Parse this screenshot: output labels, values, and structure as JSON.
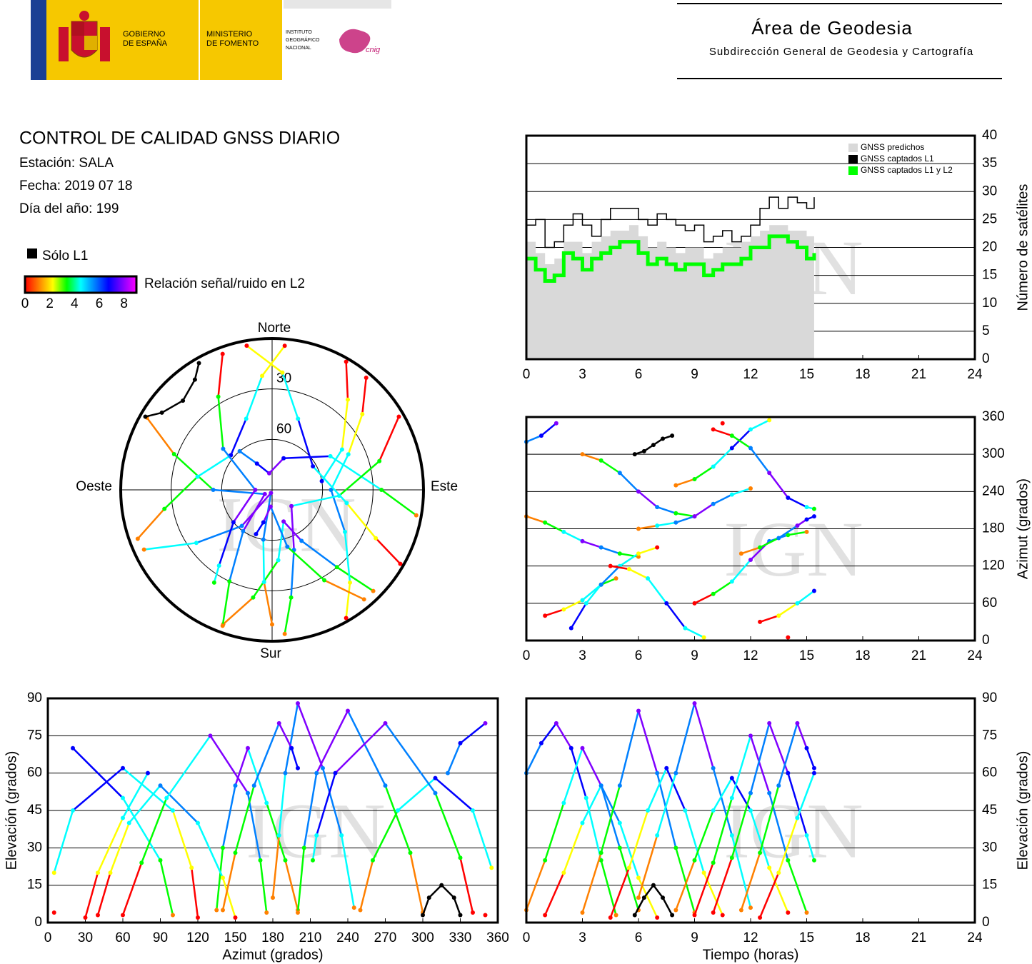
{
  "header": {
    "government": [
      "GOBIERNO",
      "DE ESPAÑA"
    ],
    "ministry": [
      "MINISTERIO",
      "DE FOMENTO"
    ],
    "institute": [
      "INSTITUTO",
      "GEOGRÁFICO",
      "NACIONAL"
    ],
    "cnig": "cnig",
    "area": "Área de Geodesia",
    "subdirectorate": "Subdirección General de Geodesia y Cartografía"
  },
  "report": {
    "title": "CONTROL DE CALIDAD GNSS DIARIO",
    "station": "Estación: SALA",
    "date": "Fecha: 2019 07 18",
    "day_of_year": "Día del año: 199"
  },
  "legend": {
    "l1_only": "Sólo L1",
    "l1_only_color": "#000000",
    "snr_label": "Relación señal/ruido en L2",
    "colormap": [
      "#ff0000",
      "#ff8000",
      "#ffff00",
      "#00ff00",
      "#00ffff",
      "#0080ff",
      "#0000ff",
      "#8000ff",
      "#ff00ff"
    ],
    "snr_lim": [
      0,
      9
    ],
    "snr_ticks": [
      0,
      2,
      4,
      6,
      8
    ]
  },
  "watermark": "IGN",
  "observations": {
    "passes": [
      {
        "time": [
          0,
          0.8,
          1.6,
          2.4,
          3.2,
          4.0,
          4.8
        ],
        "azimuth": [
          320,
          330,
          350,
          20,
          60,
          90,
          100
        ],
        "elevation": [
          60,
          72,
          80,
          70,
          50,
          25,
          3
        ],
        "snr": [
          6,
          7,
          8,
          7,
          5,
          3,
          1
        ]
      },
      {
        "time": [
          0,
          1,
          2,
          3,
          4,
          5,
          6
        ],
        "azimuth": [
          200,
          190,
          175,
          160,
          150,
          140,
          135
        ],
        "elevation": [
          5,
          25,
          48,
          70,
          55,
          30,
          5
        ],
        "snr": [
          1,
          3,
          5,
          8,
          6,
          3,
          1
        ]
      },
      {
        "time": [
          1,
          2,
          3,
          4,
          5,
          6,
          7
        ],
        "azimuth": [
          40,
          50,
          65,
          90,
          120,
          140,
          150
        ],
        "elevation": [
          3,
          20,
          40,
          55,
          40,
          18,
          2
        ],
        "snr": [
          0,
          2,
          4,
          6,
          4,
          2,
          0
        ]
      },
      {
        "time": [
          3,
          4,
          5,
          6,
          7,
          8,
          9
        ],
        "azimuth": [
          300,
          290,
          270,
          240,
          215,
          205,
          200
        ],
        "elevation": [
          4,
          28,
          55,
          85,
          60,
          30,
          4
        ],
        "snr": [
          1,
          3,
          6,
          8,
          6,
          3,
          1
        ]
      },
      {
        "time": [
          4.5,
          5.5,
          6.5,
          7.5,
          8.5,
          9.5,
          10.5
        ],
        "azimuth": [
          120,
          115,
          100,
          60,
          20,
          5,
          350
        ],
        "elevation": [
          2,
          22,
          45,
          62,
          45,
          20,
          3
        ],
        "snr": [
          0,
          2,
          5,
          7,
          5,
          2,
          0
        ]
      },
      {
        "time": [
          6,
          7,
          8,
          9,
          10,
          11,
          12
        ],
        "azimuth": [
          180,
          185,
          190,
          200,
          220,
          235,
          245
        ],
        "elevation": [
          10,
          35,
          60,
          88,
          62,
          35,
          6
        ],
        "snr": [
          1,
          4,
          6,
          8,
          6,
          4,
          1
        ]
      },
      {
        "time": [
          8,
          9,
          10,
          11,
          12,
          13,
          14
        ],
        "azimuth": [
          250,
          260,
          280,
          310,
          340,
          355,
          5
        ],
        "elevation": [
          5,
          25,
          45,
          58,
          45,
          22,
          4
        ],
        "snr": [
          1,
          3,
          5,
          7,
          5,
          2,
          0
        ]
      },
      {
        "time": [
          9,
          10,
          11,
          12,
          13,
          14,
          15
        ],
        "azimuth": [
          60,
          75,
          95,
          130,
          160,
          170,
          175
        ],
        "elevation": [
          3,
          24,
          50,
          75,
          52,
          25,
          4
        ],
        "snr": [
          0,
          3,
          5,
          8,
          6,
          3,
          1
        ]
      },
      {
        "time": [
          10,
          11,
          12,
          13,
          14,
          15,
          15.4
        ],
        "azimuth": [
          340,
          330,
          310,
          270,
          230,
          215,
          212
        ],
        "elevation": [
          4,
          26,
          52,
          80,
          60,
          35,
          25
        ],
        "snr": [
          0,
          3,
          6,
          8,
          7,
          4,
          3
        ]
      },
      {
        "time": [
          11.5,
          12.5,
          13.5,
          14.5,
          15,
          15.4
        ],
        "azimuth": [
          140,
          150,
          165,
          185,
          195,
          200
        ],
        "elevation": [
          5,
          28,
          55,
          80,
          70,
          62
        ],
        "snr": [
          1,
          3,
          6,
          8,
          7,
          7
        ]
      },
      {
        "time": [
          5.8,
          6.3,
          6.8,
          7.3,
          7.8
        ],
        "azimuth": [
          300,
          305,
          315,
          325,
          330
        ],
        "elevation": [
          3,
          10,
          15,
          10,
          3
        ],
        "l1_only": true
      },
      {
        "time": [
          12.5,
          13.5,
          14.5,
          15.4
        ],
        "azimuth": [
          30,
          40,
          60,
          80
        ],
        "elevation": [
          2,
          20,
          42,
          60
        ],
        "snr": [
          0,
          2,
          5,
          7
        ]
      }
    ]
  },
  "chart_data": [
    {
      "type": "line",
      "step": true,
      "grid": true,
      "legend": "upper right",
      "y_axis_side": "right",
      "x": [
        0,
        0.5,
        1,
        1.5,
        2,
        2.5,
        3,
        3.5,
        4,
        4.5,
        5,
        5.5,
        6,
        6.5,
        7,
        7.5,
        8,
        8.5,
        9,
        9.5,
        10,
        10.5,
        11,
        11.5,
        12,
        12.5,
        13,
        13.5,
        14,
        14.5,
        15,
        15.4
      ],
      "series": [
        {
          "name": "GNSS predichos",
          "color": "#d9d9d9",
          "fill": true,
          "values": [
            21,
            19,
            17,
            18,
            21,
            21,
            19,
            21,
            22,
            23,
            23,
            24,
            22,
            20,
            21,
            20,
            19,
            20,
            20,
            18,
            19,
            20,
            20,
            21,
            22,
            23,
            24,
            24,
            23,
            23,
            22,
            22
          ]
        },
        {
          "name": "GNSS captados L1",
          "color": "#000000",
          "values": [
            24,
            25,
            20,
            21,
            24,
            26,
            24,
            22,
            25,
            27,
            27,
            27,
            25,
            24,
            26,
            25,
            24,
            23,
            24,
            21,
            22,
            23,
            21,
            22,
            24,
            27,
            29,
            27,
            29,
            28,
            27,
            29
          ]
        },
        {
          "name": "GNSS captados L1 y L2",
          "color": "#00ff00",
          "values": [
            18,
            16,
            14,
            15,
            19,
            18,
            16,
            18,
            19,
            20,
            21,
            21,
            19,
            17,
            18,
            17,
            16,
            17,
            17,
            15,
            16,
            17,
            17,
            18,
            20,
            20,
            22,
            22,
            21,
            20,
            18,
            19
          ]
        }
      ],
      "xlim": [
        0,
        24
      ],
      "xticks": [
        0,
        3,
        6,
        9,
        12,
        15,
        18,
        21,
        24
      ],
      "ylim": [
        0,
        40
      ],
      "yticks": [
        0,
        5,
        10,
        15,
        20,
        25,
        30,
        35,
        40
      ],
      "ylabel": "Número de satélites"
    },
    {
      "type": "polar",
      "rlim": [
        90,
        0
      ],
      "rticks": [
        30,
        60
      ],
      "directions": {
        "north": "Norte",
        "south": "Sur",
        "east": "Este",
        "west": "Oeste"
      }
    },
    {
      "type": "track",
      "x_field": "time",
      "y_field": "azimuth",
      "grid": true,
      "y_axis_side": "right",
      "xlim": [
        0,
        24
      ],
      "xticks": [
        0,
        3,
        6,
        9,
        12,
        15,
        18,
        21,
        24
      ],
      "ylim": [
        0,
        360
      ],
      "yticks": [
        0,
        60,
        120,
        180,
        240,
        300,
        360
      ],
      "ylabel": "Azimut (grados)"
    },
    {
      "type": "track",
      "x_field": "azimuth",
      "y_field": "elevation",
      "grid": true,
      "y_axis_side": "left",
      "xlim": [
        0,
        360
      ],
      "xticks": [
        0,
        30,
        60,
        90,
        120,
        150,
        180,
        210,
        240,
        270,
        300,
        330,
        360
      ],
      "ylim": [
        0,
        90
      ],
      "yticks": [
        0,
        15,
        30,
        45,
        60,
        75,
        90
      ],
      "xlabel": "Azimut (grados)",
      "ylabel": "Elevación (grados)"
    },
    {
      "type": "track",
      "x_field": "time",
      "y_field": "elevation",
      "grid": true,
      "y_axis_side": "right",
      "xlim": [
        0,
        24
      ],
      "xticks": [
        0,
        3,
        6,
        9,
        12,
        15,
        18,
        21,
        24
      ],
      "ylim": [
        0,
        90
      ],
      "yticks": [
        0,
        15,
        30,
        45,
        60,
        75,
        90
      ],
      "xlabel": "Tiempo (horas)",
      "ylabel": "Elevación (grados)"
    }
  ]
}
